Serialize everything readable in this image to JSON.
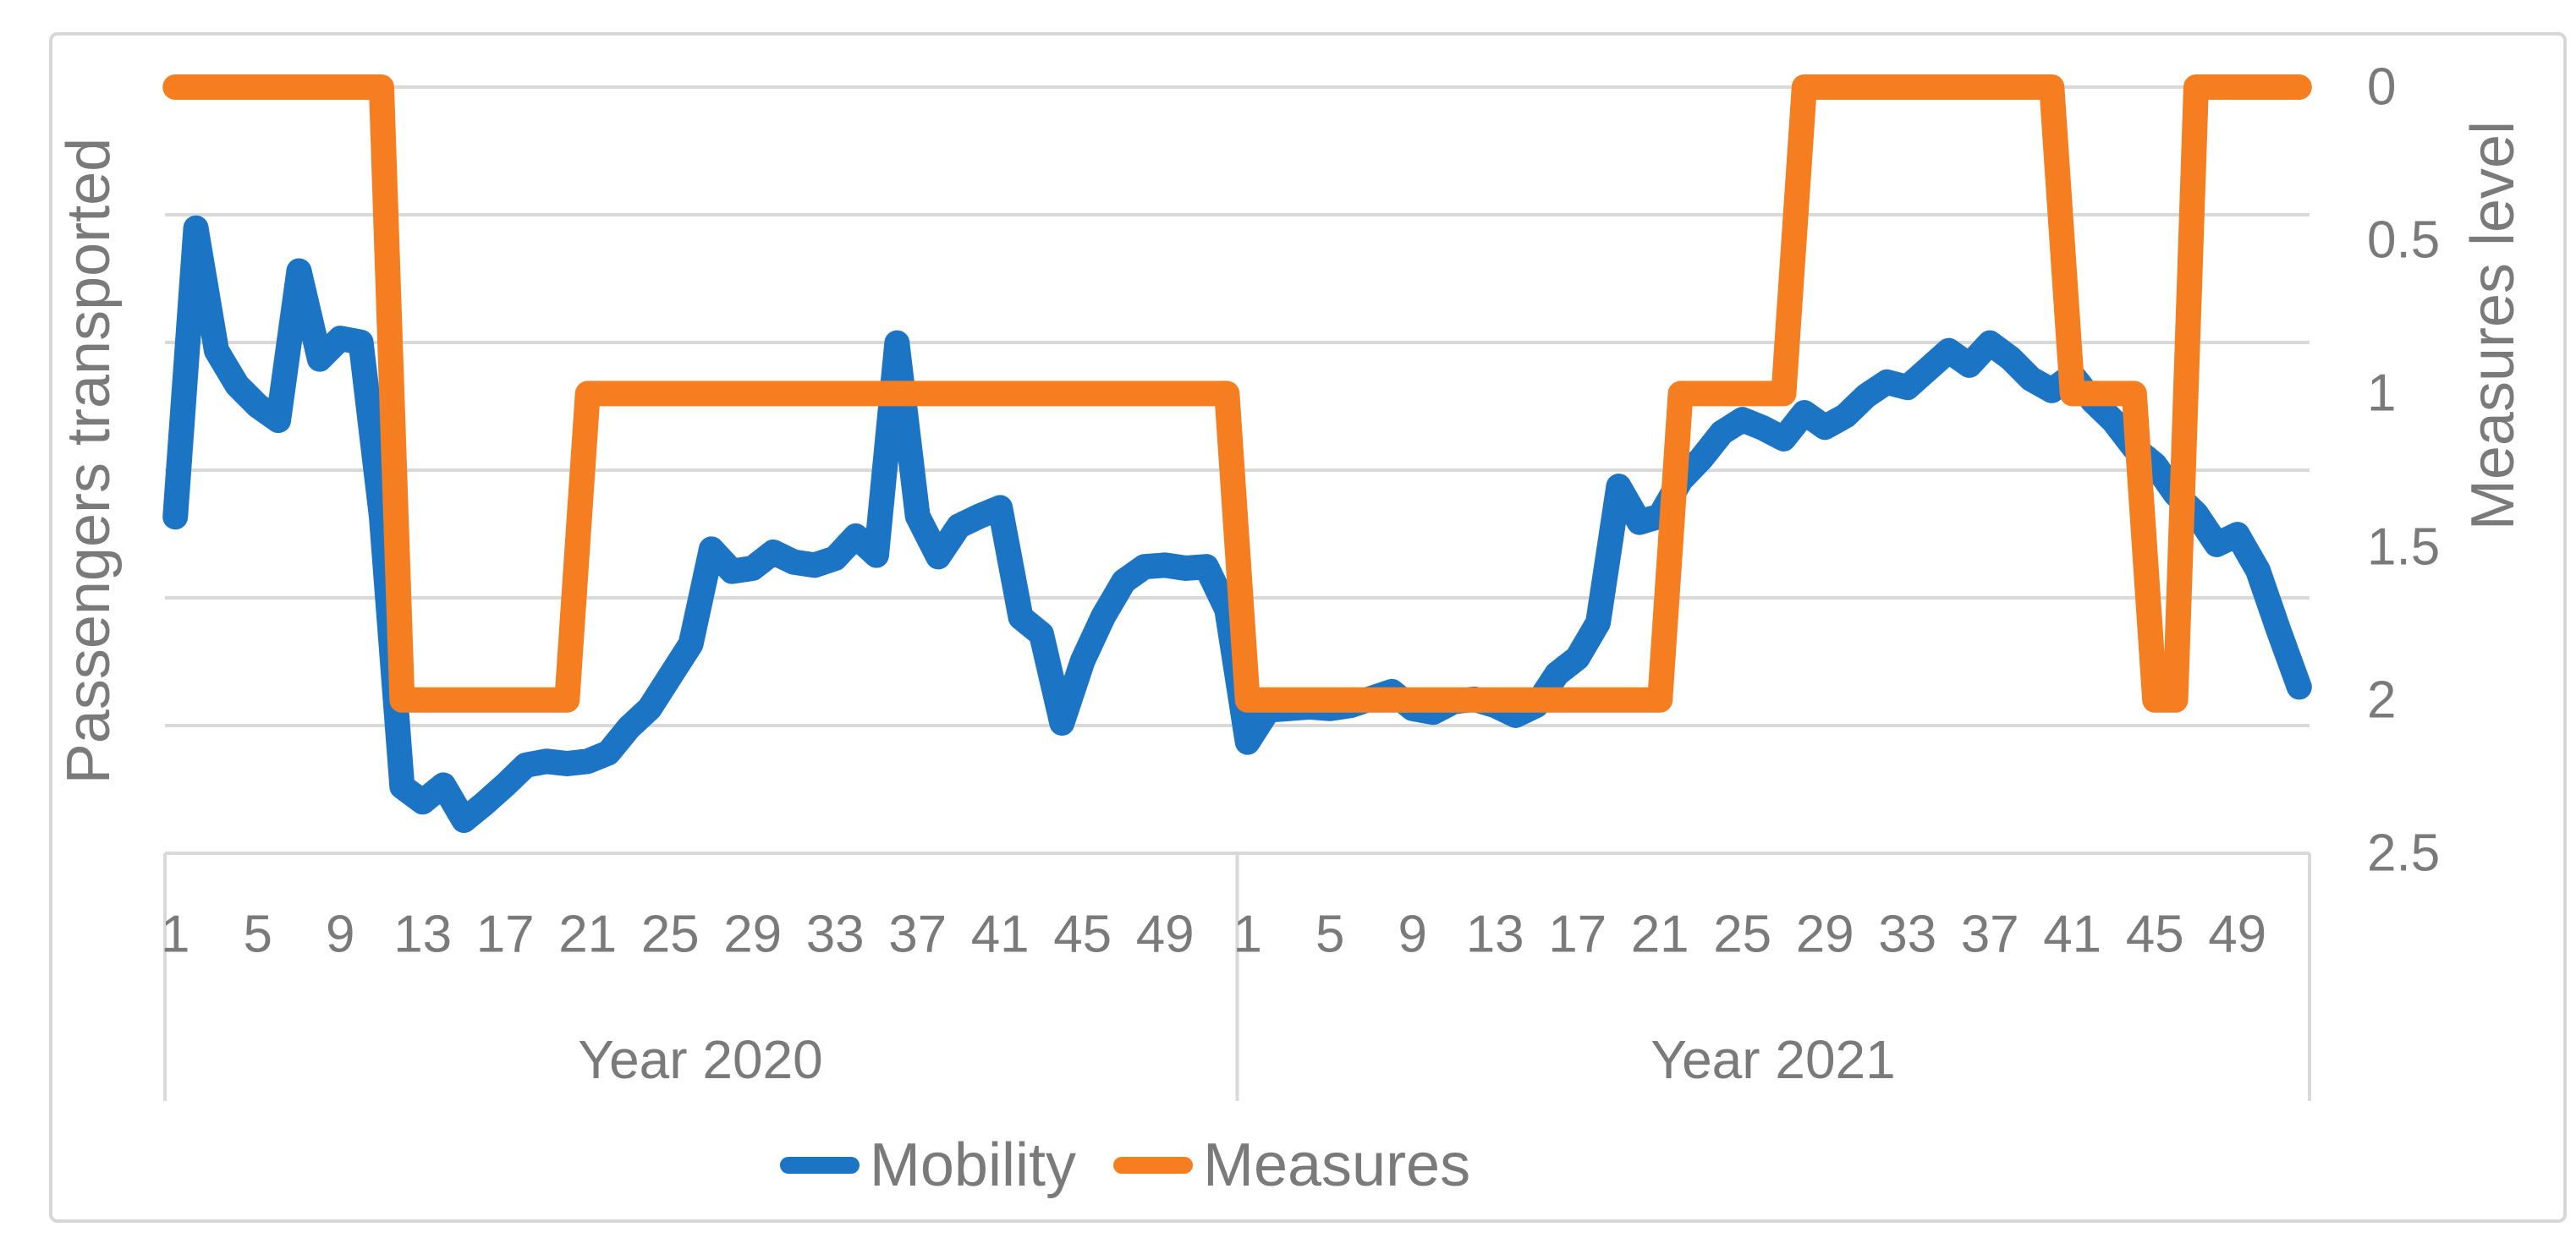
{
  "chart_data": {
    "type": "line",
    "title": "",
    "left_axis": {
      "title": "Passengers transported",
      "tick_labels_visible": false
    },
    "right_axis": {
      "title": "Measures level",
      "tick_labels": [
        "0",
        "0.5",
        "1",
        "1.5",
        "2",
        "2.5"
      ],
      "min": 0,
      "max": 2.5,
      "reversed": true
    },
    "x_axis": {
      "weeks_per_group": 52,
      "groups": [
        {
          "label": "Year 2020",
          "week_tick_labels": [
            "1",
            "5",
            "9",
            "13",
            "17",
            "21",
            "25",
            "29",
            "33",
            "37",
            "41",
            "45",
            "49"
          ]
        },
        {
          "label": "Year 2021",
          "week_tick_labels": [
            "1",
            "5",
            "9",
            "13",
            "17",
            "21",
            "25",
            "29",
            "33",
            "37",
            "41",
            "45",
            "49"
          ]
        }
      ]
    },
    "legend": [
      {
        "label": "Mobility",
        "color": "#1B74C4"
      },
      {
        "label": "Measures",
        "color": "#F57E20"
      }
    ],
    "series": [
      {
        "name": "Mobility",
        "axis": "left",
        "color": "#1B74C4",
        "units": "normalized 0-1 of plot height (left axis has no visible tick labels)",
        "values_2020": [
          0.439,
          0.816,
          0.656,
          0.611,
          0.584,
          0.565,
          0.76,
          0.645,
          0.672,
          0.667,
          0.44,
          0.087,
          0.067,
          0.089,
          0.043,
          0.065,
          0.089,
          0.115,
          0.12,
          0.117,
          0.12,
          0.131,
          0.164,
          0.189,
          0.231,
          0.273,
          0.397,
          0.368,
          0.372,
          0.393,
          0.38,
          0.376,
          0.385,
          0.414,
          0.389,
          0.666,
          0.44,
          0.387,
          0.427,
          0.44,
          0.451,
          0.308,
          0.286,
          0.17,
          0.251,
          0.309,
          0.355,
          0.374,
          0.376,
          0.372,
          0.374,
          0.318
        ],
        "values_2021": [
          0.145,
          0.187,
          0.189,
          0.191,
          0.189,
          0.193,
          0.202,
          0.211,
          0.189,
          0.184,
          0.198,
          0.201,
          0.193,
          0.18,
          0.193,
          0.234,
          0.255,
          0.301,
          0.479,
          0.432,
          0.44,
          0.487,
          0.515,
          0.549,
          0.566,
          0.555,
          0.541,
          0.575,
          0.556,
          0.571,
          0.597,
          0.615,
          0.608,
          0.632,
          0.656,
          0.637,
          0.666,
          0.646,
          0.619,
          0.604,
          0.624,
          0.59,
          0.564,
          0.529,
          0.507,
          0.469,
          0.443,
          0.403,
          0.416,
          0.369,
          0.291,
          0.217
        ]
      },
      {
        "name": "Measures",
        "axis": "right",
        "color": "#F57E20",
        "units": "measures level (0 = none, higher = stricter; right axis reversed, 0 at top)",
        "values_2020": [
          0,
          0,
          0,
          0,
          0,
          0,
          0,
          0,
          0,
          0,
          0,
          2,
          2,
          2,
          2,
          2,
          2,
          2,
          2,
          2,
          1,
          1,
          1,
          1,
          1,
          1,
          1,
          1,
          1,
          1,
          1,
          1,
          1,
          1,
          1,
          1,
          1,
          1,
          1,
          1,
          1,
          1,
          1,
          1,
          1,
          1,
          1,
          1,
          1,
          1,
          1,
          1
        ],
        "values_2021": [
          2,
          2,
          2,
          2,
          2,
          2,
          2,
          2,
          2,
          2,
          2,
          2,
          2,
          2,
          2,
          2,
          2,
          2,
          2,
          2,
          2,
          1,
          1,
          1,
          1,
          1,
          1,
          0,
          0,
          0,
          0,
          0,
          0,
          0,
          0,
          0,
          0,
          0,
          0,
          0,
          1,
          1,
          1,
          1,
          2,
          2,
          0,
          0,
          0,
          0,
          0,
          0
        ]
      }
    ],
    "gridlines": {
      "horizontal_count": 7,
      "color": "#D9D9D9"
    }
  },
  "colors": {
    "mobility_line": "#1B74C4",
    "measures_line": "#F57E20",
    "gridline": "#D9D9D9",
    "axis_text": "#7A7A7A",
    "frame_border": "#D7D7D7",
    "background": "#FFFFFF"
  }
}
